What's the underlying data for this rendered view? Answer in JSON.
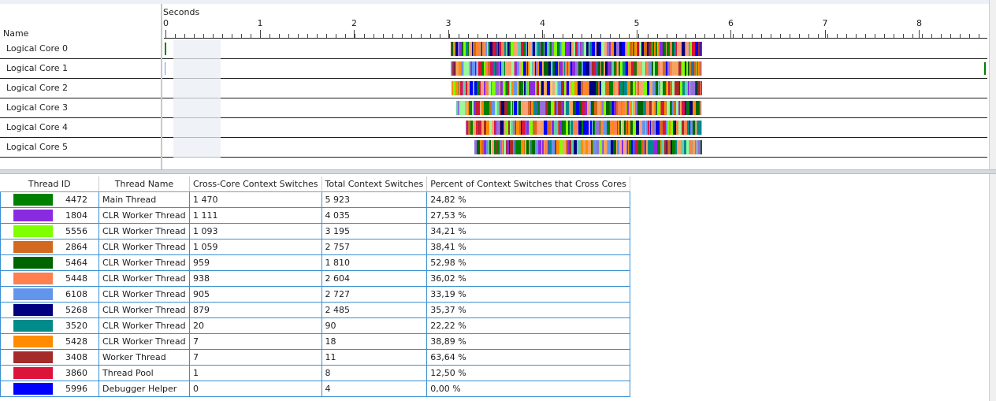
{
  "timeline": {
    "scale_label": "Seconds",
    "name_header": "Name",
    "ticks": [
      "0",
      "1",
      "2",
      "3",
      "4",
      "5",
      "6",
      "7",
      "8"
    ],
    "cores": [
      "Logical Core 0",
      "Logical Core 1",
      "Logical Core 2",
      "Logical Core 3",
      "Logical Core 4",
      "Logical Core 5"
    ]
  },
  "table": {
    "headers": [
      "Thread ID",
      "Thread Name",
      "Cross-Core Context Switches",
      "Total Context Switches",
      "Percent of Context Switches that Cross Cores"
    ],
    "rows": [
      {
        "id": "4472",
        "name": "Main Thread",
        "cross": "1 470",
        "total": "5 923",
        "pct": "24,82 %",
        "color": "#008000"
      },
      {
        "id": "1804",
        "name": "CLR Worker Thread",
        "cross": "1 111",
        "total": "4 035",
        "pct": "27,53 %",
        "color": "#8a2be2"
      },
      {
        "id": "5556",
        "name": "CLR Worker Thread",
        "cross": "1 093",
        "total": "3 195",
        "pct": "34,21 %",
        "color": "#7fff00"
      },
      {
        "id": "2864",
        "name": "CLR Worker Thread",
        "cross": "1 059",
        "total": "2 757",
        "pct": "38,41 %",
        "color": "#d2691e"
      },
      {
        "id": "5464",
        "name": "CLR Worker Thread",
        "cross": "959",
        "total": "1 810",
        "pct": "52,98 %",
        "color": "#006400"
      },
      {
        "id": "5448",
        "name": "CLR Worker Thread",
        "cross": "938",
        "total": "2 604",
        "pct": "36,02 %",
        "color": "#ff7f50"
      },
      {
        "id": "6108",
        "name": "CLR Worker Thread",
        "cross": "905",
        "total": "2 727",
        "pct": "33,19 %",
        "color": "#6495ed"
      },
      {
        "id": "5268",
        "name": "CLR Worker Thread",
        "cross": "879",
        "total": "2 485",
        "pct": "35,37 %",
        "color": "#000080"
      },
      {
        "id": "3520",
        "name": "CLR Worker Thread",
        "cross": "20",
        "total": "90",
        "pct": "22,22 %",
        "color": "#008b8b"
      },
      {
        "id": "5428",
        "name": "CLR Worker Thread",
        "cross": "7",
        "total": "18",
        "pct": "38,89 %",
        "color": "#ff8c00"
      },
      {
        "id": "3408",
        "name": "Worker Thread",
        "cross": "7",
        "total": "11",
        "pct": "63,64 %",
        "color": "#a52a2a"
      },
      {
        "id": "3860",
        "name": "Thread Pool",
        "cross": "1",
        "total": "8",
        "pct": "12,50 %",
        "color": "#dc143c"
      },
      {
        "id": "5996",
        "name": "Debugger Helper",
        "cross": "0",
        "total": "4",
        "pct": "0,00 %",
        "color": "#0000ff"
      }
    ]
  }
}
